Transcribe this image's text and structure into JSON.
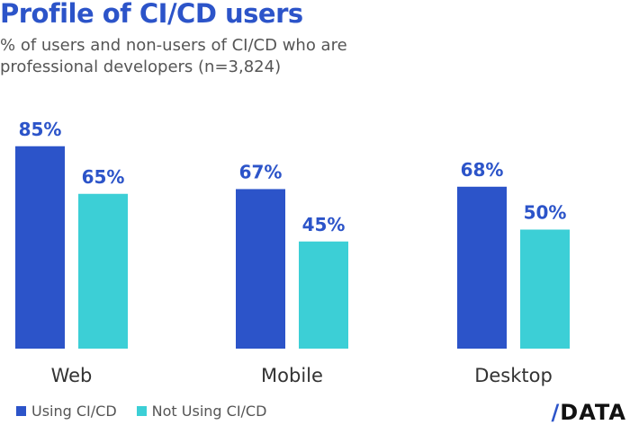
{
  "chart_data": {
    "type": "bar",
    "title": "Profile of CI/CD users",
    "subtitle": "% of users and non-users of CI/CD who are professional developers (n=3,824)",
    "categories": [
      "Web",
      "Mobile",
      "Desktop"
    ],
    "series": [
      {
        "name": "Using CI/CD",
        "values": [
          85,
          67,
          68
        ],
        "color": "#2c54c9",
        "labels": [
          "85%",
          "67%",
          "68%"
        ]
      },
      {
        "name": "Not Using CI/CD",
        "values": [
          65,
          45,
          50
        ],
        "color": "#3ccfd6",
        "labels": [
          "65%",
          "45%",
          "50%"
        ]
      }
    ],
    "ylim": [
      0,
      100
    ],
    "grid": false,
    "legend": "bottom-left"
  },
  "logo": {
    "slash": "/",
    "text": "DATA"
  }
}
